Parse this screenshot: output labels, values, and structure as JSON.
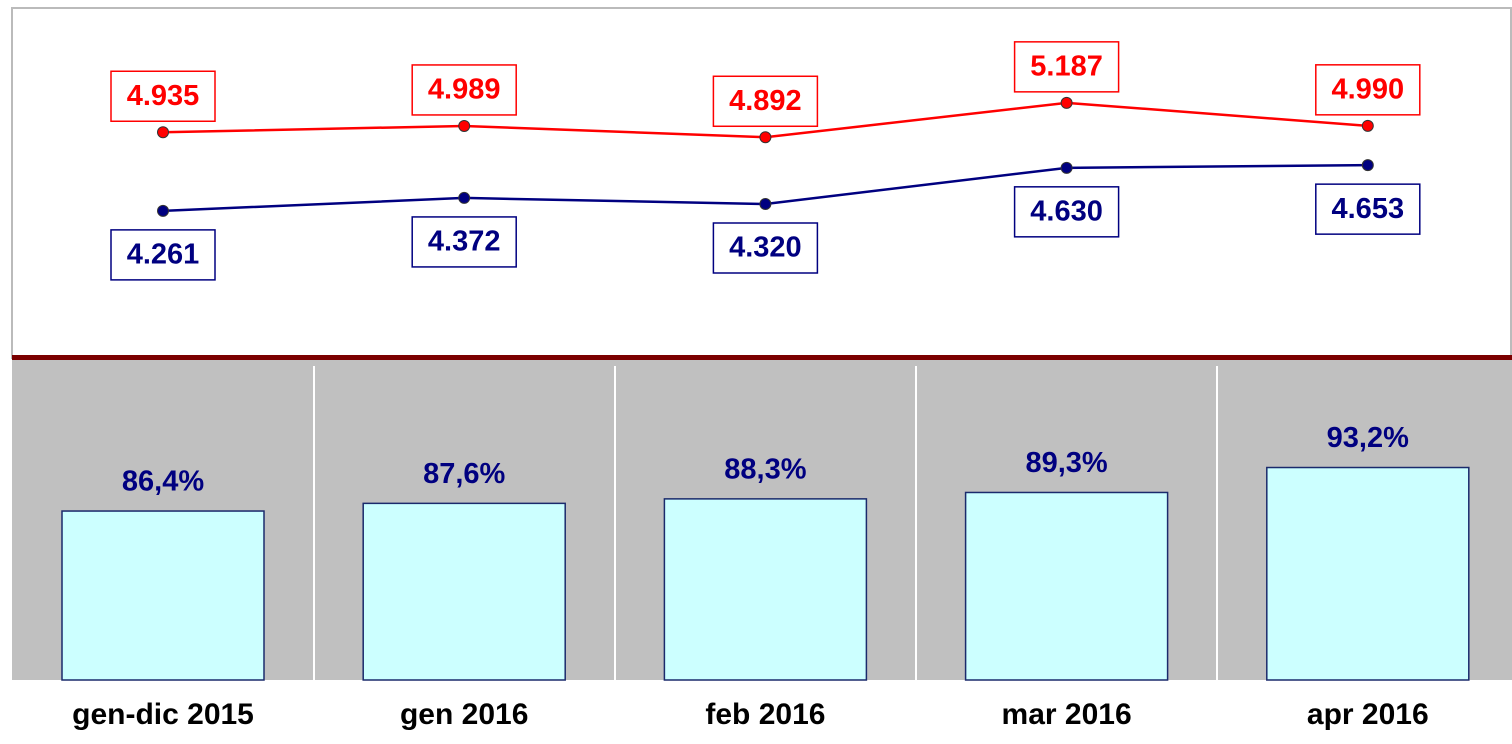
{
  "chart_data": [
    {
      "type": "line",
      "series": [
        {
          "color": "#ff0000",
          "values": [
            4935,
            4989,
            4892,
            5187,
            4990
          ],
          "value_labels": [
            "4.935",
            "4.989",
            "4.892",
            "5.187",
            "4.990"
          ]
        },
        {
          "color": "#000080",
          "values": [
            4261,
            4372,
            4320,
            4630,
            4653
          ],
          "value_labels": [
            "4.261",
            "4.372",
            "4.320",
            "4.630",
            "4.653"
          ]
        }
      ],
      "ylim": [
        3000,
        6000
      ]
    },
    {
      "type": "bar",
      "categories": [
        "gen-dic 2015",
        "gen 2016",
        "feb 2016",
        "mar 2016",
        "apr 2016"
      ],
      "values": [
        86.4,
        87.6,
        88.3,
        89.3,
        93.2
      ],
      "value_labels": [
        "86,4%",
        "87,6%",
        "88,3%",
        "89,3%",
        "93,2%"
      ],
      "color": "#ccffff",
      "label_color": "#000080",
      "ylim": [
        60,
        110
      ]
    }
  ]
}
